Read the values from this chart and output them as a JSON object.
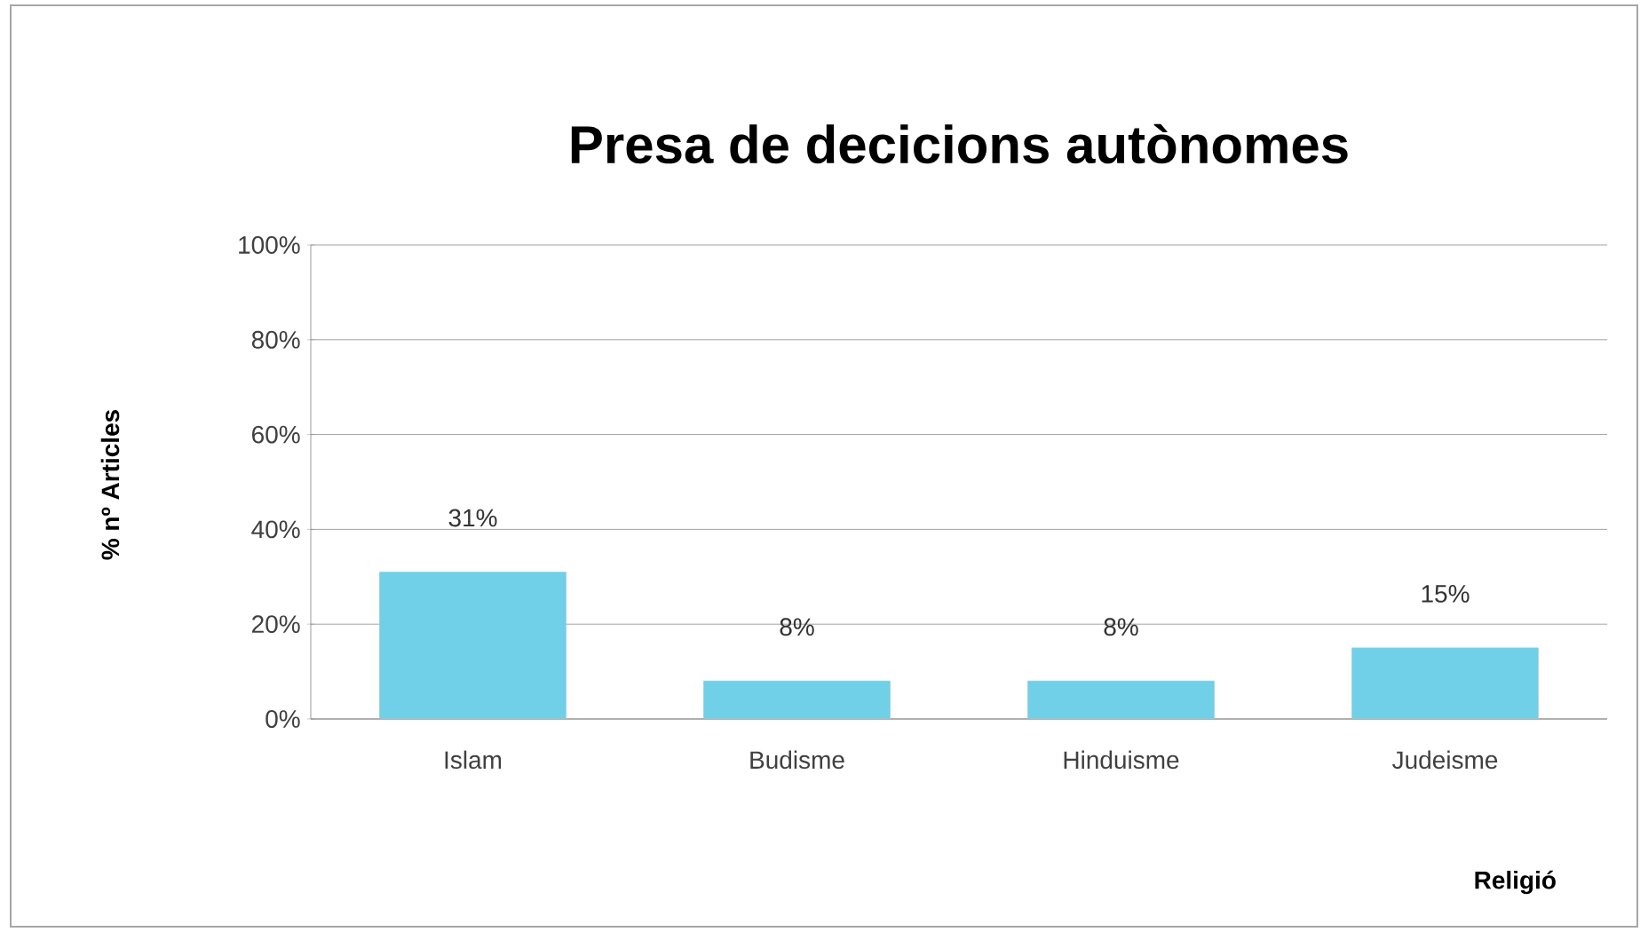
{
  "chart_data": {
    "type": "bar",
    "title": "Presa de decicions autònomes",
    "xlabel": "Religió",
    "ylabel": "% nº Articles",
    "categories": [
      "Islam",
      "Budisme",
      "Hinduisme",
      "Judeisme"
    ],
    "values": [
      31,
      8,
      8,
      15
    ],
    "value_labels": [
      "31%",
      "8%",
      "8%",
      "15%"
    ],
    "color": "#6fd0e8",
    "ylim": [
      0,
      100
    ],
    "yticks": [
      {
        "value": 0,
        "label": "0%"
      },
      {
        "value": 20,
        "label": "20%"
      },
      {
        "value": 40,
        "label": "40%"
      },
      {
        "value": 60,
        "label": "60%"
      },
      {
        "value": 80,
        "label": "80%"
      },
      {
        "value": 100,
        "label": "100%"
      }
    ],
    "grid": "y"
  }
}
